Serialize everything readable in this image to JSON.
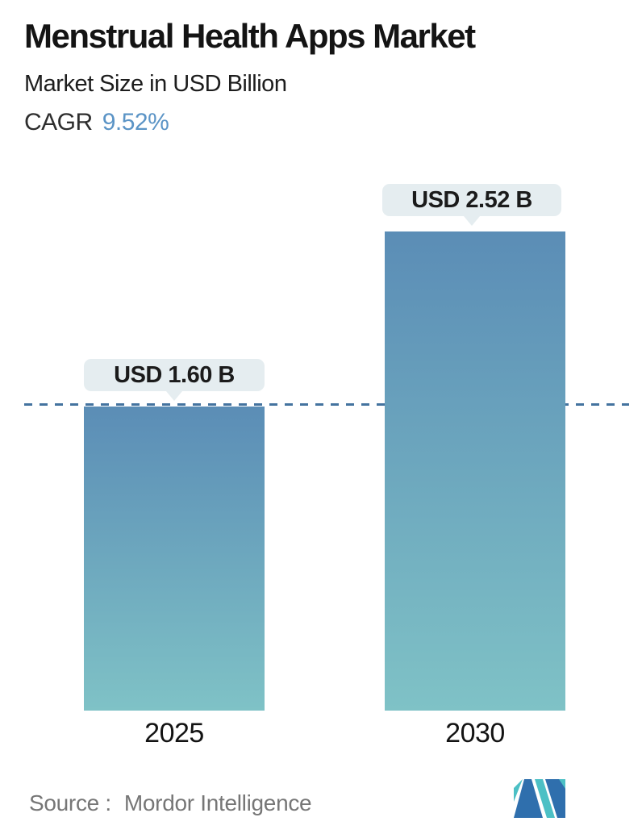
{
  "header": {
    "title": "Menstrual Health Apps Market",
    "subtitle": "Market Size in USD Billion",
    "cagr_label": "CAGR",
    "cagr_value": "9.52%"
  },
  "chart_data": {
    "type": "bar",
    "title": "Menstrual Health Apps Market",
    "subtitle": "Market Size in USD Billion",
    "unit": "USD Billion",
    "cagr_percent": 9.52,
    "categories": [
      "2025",
      "2030"
    ],
    "values": [
      1.6,
      2.52
    ],
    "value_labels": [
      "USD 1.60 B",
      "USD 2.52 B"
    ],
    "ylim": [
      0,
      2.52
    ],
    "grid": false,
    "legend": false,
    "reference_line": {
      "value": 1.6,
      "style": "dashed"
    },
    "colors": {
      "bar_gradient_top": "#5b8db6",
      "bar_gradient_bottom": "#7fc2c6",
      "reference_line": "#44739f",
      "tooltip_bg": "#e5edf0",
      "cagr_accent": "#5b94c6",
      "logo_blue": "#2f6fad",
      "logo_teal": "#4cc0c5"
    }
  },
  "footer": {
    "source_label": "Source :",
    "source_value": "Mordor Intelligence",
    "logo_name": "mordor-intelligence-logo"
  }
}
